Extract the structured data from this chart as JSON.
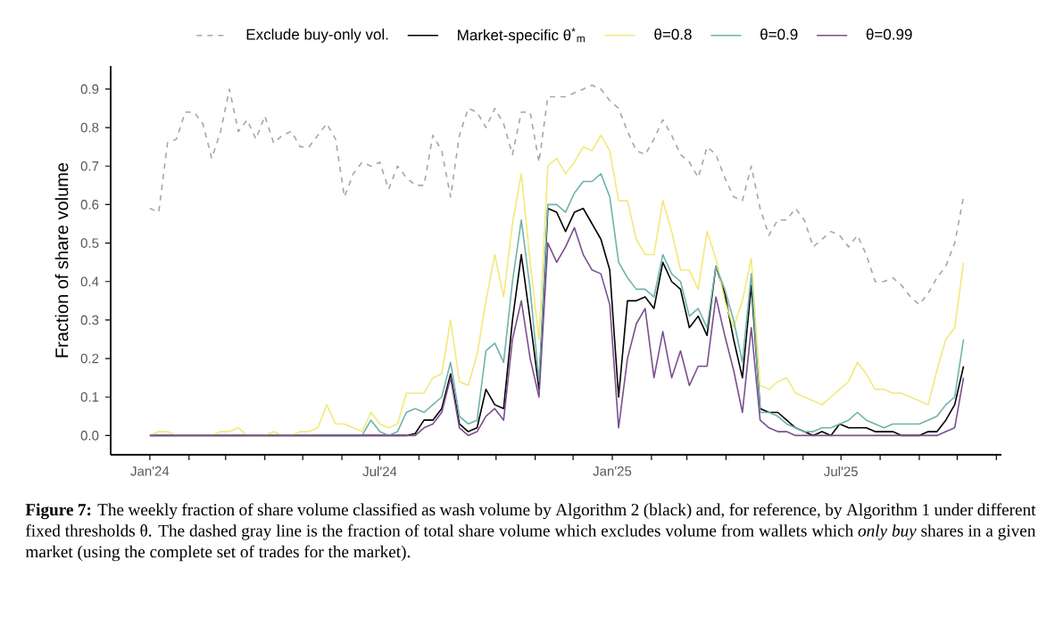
{
  "chart_data": {
    "type": "line",
    "ylabel": "Fraction of share volume",
    "x": [
      "2024-01-01",
      "2024-01-08",
      "2024-01-15",
      "2024-01-22",
      "2024-01-29",
      "2024-02-05",
      "2024-02-12",
      "2024-02-19",
      "2024-02-26",
      "2024-03-04",
      "2024-03-11",
      "2024-03-18",
      "2024-03-25",
      "2024-04-01",
      "2024-04-08",
      "2024-04-15",
      "2024-04-22",
      "2024-04-29",
      "2024-05-06",
      "2024-05-13",
      "2024-05-20",
      "2024-05-27",
      "2024-06-03",
      "2024-06-10",
      "2024-06-17",
      "2024-06-24",
      "2024-07-01",
      "2024-07-08",
      "2024-07-15",
      "2024-07-22",
      "2024-07-29",
      "2024-08-05",
      "2024-08-12",
      "2024-08-19",
      "2024-08-26",
      "2024-09-02",
      "2024-09-09",
      "2024-09-16",
      "2024-09-23",
      "2024-09-30",
      "2024-10-07",
      "2024-10-14",
      "2024-10-21",
      "2024-10-28",
      "2024-11-04",
      "2024-11-11",
      "2024-11-18",
      "2024-11-25",
      "2024-12-02",
      "2024-12-09",
      "2024-12-16",
      "2024-12-23",
      "2024-12-30",
      "2025-01-06",
      "2025-01-13",
      "2025-01-20",
      "2025-01-27",
      "2025-02-03",
      "2025-02-10",
      "2025-02-17",
      "2025-02-24",
      "2025-03-03",
      "2025-03-10",
      "2025-03-17",
      "2025-03-24",
      "2025-03-31",
      "2025-04-07",
      "2025-04-14",
      "2025-04-21",
      "2025-04-28",
      "2025-05-05",
      "2025-05-12",
      "2025-05-19",
      "2025-05-26",
      "2025-06-02",
      "2025-06-09",
      "2025-06-16",
      "2025-06-23",
      "2025-06-30",
      "2025-07-07",
      "2025-07-14",
      "2025-07-21",
      "2025-07-28",
      "2025-08-04",
      "2025-08-11",
      "2025-08-18",
      "2025-08-25",
      "2025-09-01",
      "2025-09-08",
      "2025-09-15",
      "2025-09-22",
      "2025-09-29",
      "2025-10-06"
    ],
    "series": [
      {
        "name": "Exclude buy-only vol.",
        "color": "#a6a6a6",
        "line_style": "dashed",
        "values": [
          0.59,
          0.58,
          0.76,
          0.77,
          0.84,
          0.84,
          0.81,
          0.72,
          0.79,
          0.9,
          0.79,
          0.82,
          0.77,
          0.83,
          0.76,
          0.78,
          0.79,
          0.75,
          0.75,
          0.78,
          0.81,
          0.77,
          0.62,
          0.68,
          0.71,
          0.7,
          0.71,
          0.64,
          0.7,
          0.67,
          0.65,
          0.65,
          0.78,
          0.74,
          0.62,
          0.78,
          0.85,
          0.84,
          0.8,
          0.85,
          0.81,
          0.73,
          0.84,
          0.84,
          0.71,
          0.88,
          0.88,
          0.88,
          0.89,
          0.9,
          0.91,
          0.9,
          0.87,
          0.85,
          0.79,
          0.74,
          0.73,
          0.77,
          0.82,
          0.78,
          0.73,
          0.71,
          0.67,
          0.75,
          0.73,
          0.67,
          0.62,
          0.61,
          0.7,
          0.59,
          0.52,
          0.56,
          0.56,
          0.59,
          0.56,
          0.49,
          0.51,
          0.53,
          0.52,
          0.49,
          0.52,
          0.47,
          0.4,
          0.4,
          0.41,
          0.39,
          0.36,
          0.34,
          0.37,
          0.41,
          0.44,
          0.5,
          0.62
        ]
      },
      {
        "name": "Market-specific θ$^{*}$$_{m}$",
        "color": "#000000",
        "line_style": "solid",
        "values": [
          0,
          0,
          0,
          0,
          0,
          0,
          0,
          0,
          0,
          0,
          0,
          0,
          0,
          0,
          0,
          0,
          0,
          0,
          0,
          0,
          0,
          0,
          0,
          0,
          0,
          0,
          0,
          0,
          0,
          0,
          0.005,
          0.04,
          0.04,
          0.07,
          0.16,
          0.03,
          0.01,
          0.02,
          0.12,
          0.08,
          0.07,
          0.3,
          0.47,
          0.3,
          0.12,
          0.59,
          0.58,
          0.53,
          0.58,
          0.59,
          0.55,
          0.51,
          0.43,
          0.1,
          0.35,
          0.35,
          0.36,
          0.33,
          0.45,
          0.4,
          0.38,
          0.28,
          0.31,
          0.26,
          0.44,
          0.37,
          0.25,
          0.15,
          0.39,
          0.07,
          0.06,
          0.06,
          0.04,
          0.02,
          0.01,
          0.0,
          0.01,
          0.0,
          0.03,
          0.02,
          0.02,
          0.02,
          0.01,
          0.01,
          0.01,
          0.0,
          0.0,
          0.0,
          0.01,
          0.01,
          0.04,
          0.08,
          0.18
        ]
      },
      {
        "name": "θ=0.8",
        "color": "#f3e97a",
        "line_style": "solid",
        "values": [
          0.0,
          0.01,
          0.01,
          0.0,
          0.0,
          0.0,
          0.0,
          0.0,
          0.01,
          0.01,
          0.02,
          0.0,
          0.0,
          0.0,
          0.01,
          0.0,
          0.0,
          0.01,
          0.01,
          0.02,
          0.08,
          0.03,
          0.03,
          0.02,
          0.01,
          0.06,
          0.03,
          0.02,
          0.03,
          0.11,
          0.11,
          0.11,
          0.15,
          0.16,
          0.3,
          0.14,
          0.13,
          0.21,
          0.35,
          0.47,
          0.36,
          0.55,
          0.68,
          0.45,
          0.25,
          0.7,
          0.72,
          0.68,
          0.71,
          0.75,
          0.74,
          0.78,
          0.74,
          0.61,
          0.61,
          0.51,
          0.47,
          0.47,
          0.61,
          0.53,
          0.43,
          0.43,
          0.38,
          0.53,
          0.46,
          0.35,
          0.28,
          0.35,
          0.46,
          0.13,
          0.12,
          0.14,
          0.15,
          0.11,
          0.1,
          0.09,
          0.08,
          0.1,
          0.12,
          0.14,
          0.19,
          0.16,
          0.12,
          0.12,
          0.11,
          0.11,
          0.1,
          0.09,
          0.08,
          0.17,
          0.25,
          0.28,
          0.45
        ]
      },
      {
        "name": "θ=0.9",
        "color": "#6fb3ab",
        "line_style": "solid",
        "values": [
          0,
          0,
          0,
          0,
          0,
          0,
          0,
          0,
          0,
          0,
          0,
          0,
          0,
          0,
          0,
          0,
          0,
          0,
          0,
          0,
          0,
          0,
          0,
          0,
          0,
          0.04,
          0.01,
          0.0,
          0.01,
          0.06,
          0.07,
          0.06,
          0.08,
          0.1,
          0.19,
          0.05,
          0.03,
          0.04,
          0.22,
          0.24,
          0.19,
          0.4,
          0.56,
          0.38,
          0.14,
          0.6,
          0.6,
          0.58,
          0.63,
          0.66,
          0.66,
          0.68,
          0.62,
          0.45,
          0.41,
          0.38,
          0.38,
          0.36,
          0.47,
          0.42,
          0.4,
          0.31,
          0.33,
          0.28,
          0.44,
          0.38,
          0.3,
          0.19,
          0.42,
          0.06,
          0.06,
          0.05,
          0.03,
          0.02,
          0.01,
          0.01,
          0.02,
          0.02,
          0.03,
          0.04,
          0.06,
          0.04,
          0.03,
          0.02,
          0.03,
          0.03,
          0.03,
          0.03,
          0.04,
          0.05,
          0.08,
          0.1,
          0.25
        ]
      },
      {
        "name": "θ=0.99",
        "color": "#7b4f8f",
        "line_style": "solid",
        "values": [
          0,
          0,
          0,
          0,
          0,
          0,
          0,
          0,
          0,
          0,
          0,
          0,
          0,
          0,
          0,
          0,
          0,
          0,
          0,
          0,
          0,
          0,
          0,
          0,
          0,
          0,
          0,
          0,
          0,
          0,
          0,
          0.02,
          0.03,
          0.06,
          0.15,
          0.02,
          0.0,
          0.01,
          0.05,
          0.07,
          0.04,
          0.25,
          0.35,
          0.2,
          0.1,
          0.5,
          0.45,
          0.49,
          0.54,
          0.47,
          0.43,
          0.42,
          0.34,
          0.02,
          0.2,
          0.29,
          0.33,
          0.15,
          0.27,
          0.15,
          0.22,
          0.13,
          0.18,
          0.18,
          0.36,
          0.26,
          0.17,
          0.06,
          0.28,
          0.04,
          0.02,
          0.01,
          0.01,
          0,
          0,
          0,
          0,
          0,
          0,
          0,
          0,
          0,
          0,
          0,
          0,
          0,
          0,
          0,
          0,
          0,
          0.01,
          0.02,
          0.15
        ]
      }
    ],
    "xlim": [
      "2023-12-01",
      "2025-11-05"
    ],
    "xticks": [
      {
        "value": "2024-01-01",
        "label": "Jan'24"
      },
      {
        "value": "2024-02-01",
        "label": null
      },
      {
        "value": "2024-03-01",
        "label": null
      },
      {
        "value": "2024-04-01",
        "label": null
      },
      {
        "value": "2024-05-01",
        "label": null
      },
      {
        "value": "2024-06-01",
        "label": null
      },
      {
        "value": "2024-07-01",
        "label": "Jul'24"
      },
      {
        "value": "2024-08-01",
        "label": null
      },
      {
        "value": "2024-09-01",
        "label": null
      },
      {
        "value": "2024-10-01",
        "label": null
      },
      {
        "value": "2024-11-01",
        "label": null
      },
      {
        "value": "2024-12-01",
        "label": null
      },
      {
        "value": "2025-01-01",
        "label": "Jan'25"
      },
      {
        "value": "2025-02-01",
        "label": null
      },
      {
        "value": "2025-03-01",
        "label": null
      },
      {
        "value": "2025-04-01",
        "label": null
      },
      {
        "value": "2025-05-01",
        "label": null
      },
      {
        "value": "2025-06-01",
        "label": null
      },
      {
        "value": "2025-07-01",
        "label": "Jul'25"
      },
      {
        "value": "2025-08-01",
        "label": null
      },
      {
        "value": "2025-09-01",
        "label": null
      },
      {
        "value": "2025-10-01",
        "label": null
      },
      {
        "value": "2025-11-01",
        "label": null
      }
    ],
    "ylim": [
      -0.05,
      0.96
    ],
    "yticks": [
      {
        "value": 0,
        "label": "0.0"
      },
      0.1,
      0.2,
      0.3,
      0.4,
      0.5,
      0.6,
      0.7,
      0.8,
      0.9
    ],
    "legend": "top",
    "marker": "none",
    "grid": false,
    "annotations": [
      "**Figure 7:** The weekly fraction of share volume classified as wash volume by Algorithm 2 (black) and, for reference, by Algorithm 1 under different fixed thresholds θ. The dashed gray line is the fraction of total share volume which excludes volume from wallets which *only buy* shares in a given market (using the complete set of trades for the market)."
    ]
  }
}
